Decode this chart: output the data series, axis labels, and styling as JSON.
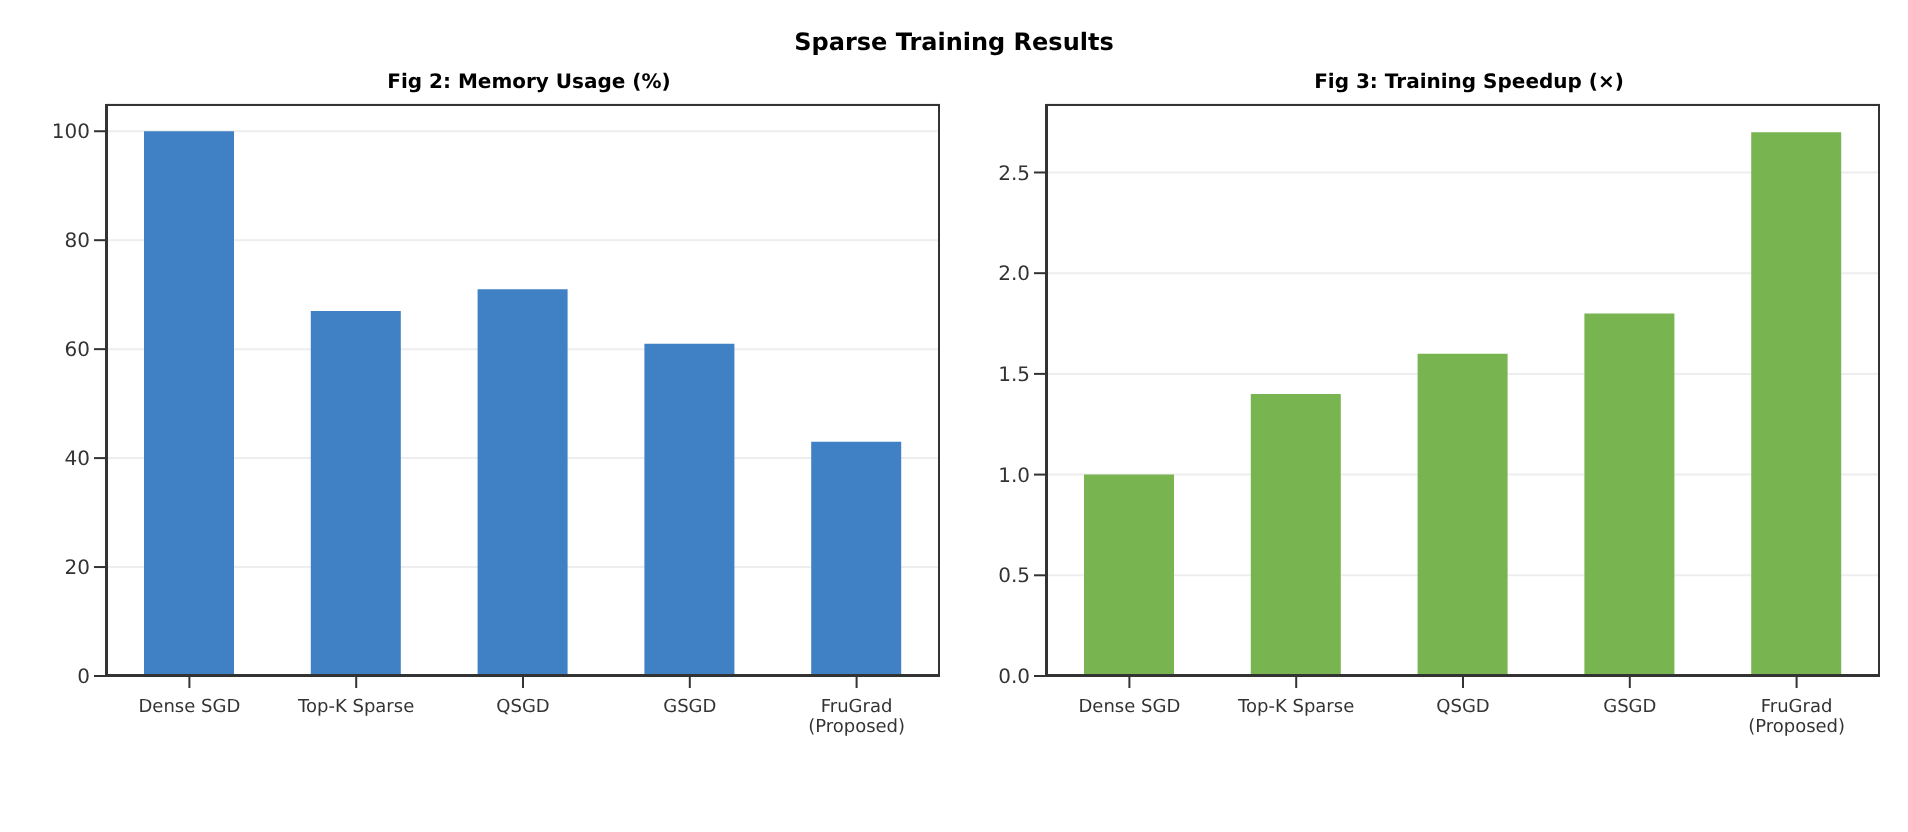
{
  "chart_data": [
    {
      "type": "bar",
      "title": "Fig 2: Memory Usage (%)",
      "annotations": [
        "Sparse Training Results"
      ],
      "categories": [
        "Dense SGD",
        "Top-K Sparse",
        "QSGD",
        "GSGD",
        "FruGrad\n(Proposed)"
      ],
      "values": [
        100,
        67,
        71,
        61,
        43
      ],
      "color": "#3f81c4",
      "ylim": [
        0,
        105
      ],
      "yticks": [
        0,
        20,
        40,
        60,
        80,
        100
      ],
      "grid": "y"
    },
    {
      "type": "bar",
      "title": "Fig 3: Training Speedup (×)",
      "categories": [
        "Dense SGD",
        "Top-K Sparse",
        "QSGD",
        "GSGD",
        "FruGrad\n(Proposed)"
      ],
      "values": [
        1.0,
        1.4,
        1.6,
        1.8,
        2.7
      ],
      "color": "#78b450",
      "ylim": [
        0,
        2.84
      ],
      "yticks": [
        {
          "value": 0,
          "label": "0.0"
        },
        0.5,
        {
          "value": 1,
          "label": "1.0"
        },
        1.5,
        {
          "value": 2,
          "label": "2.0"
        },
        2.5
      ],
      "grid": "y"
    }
  ]
}
